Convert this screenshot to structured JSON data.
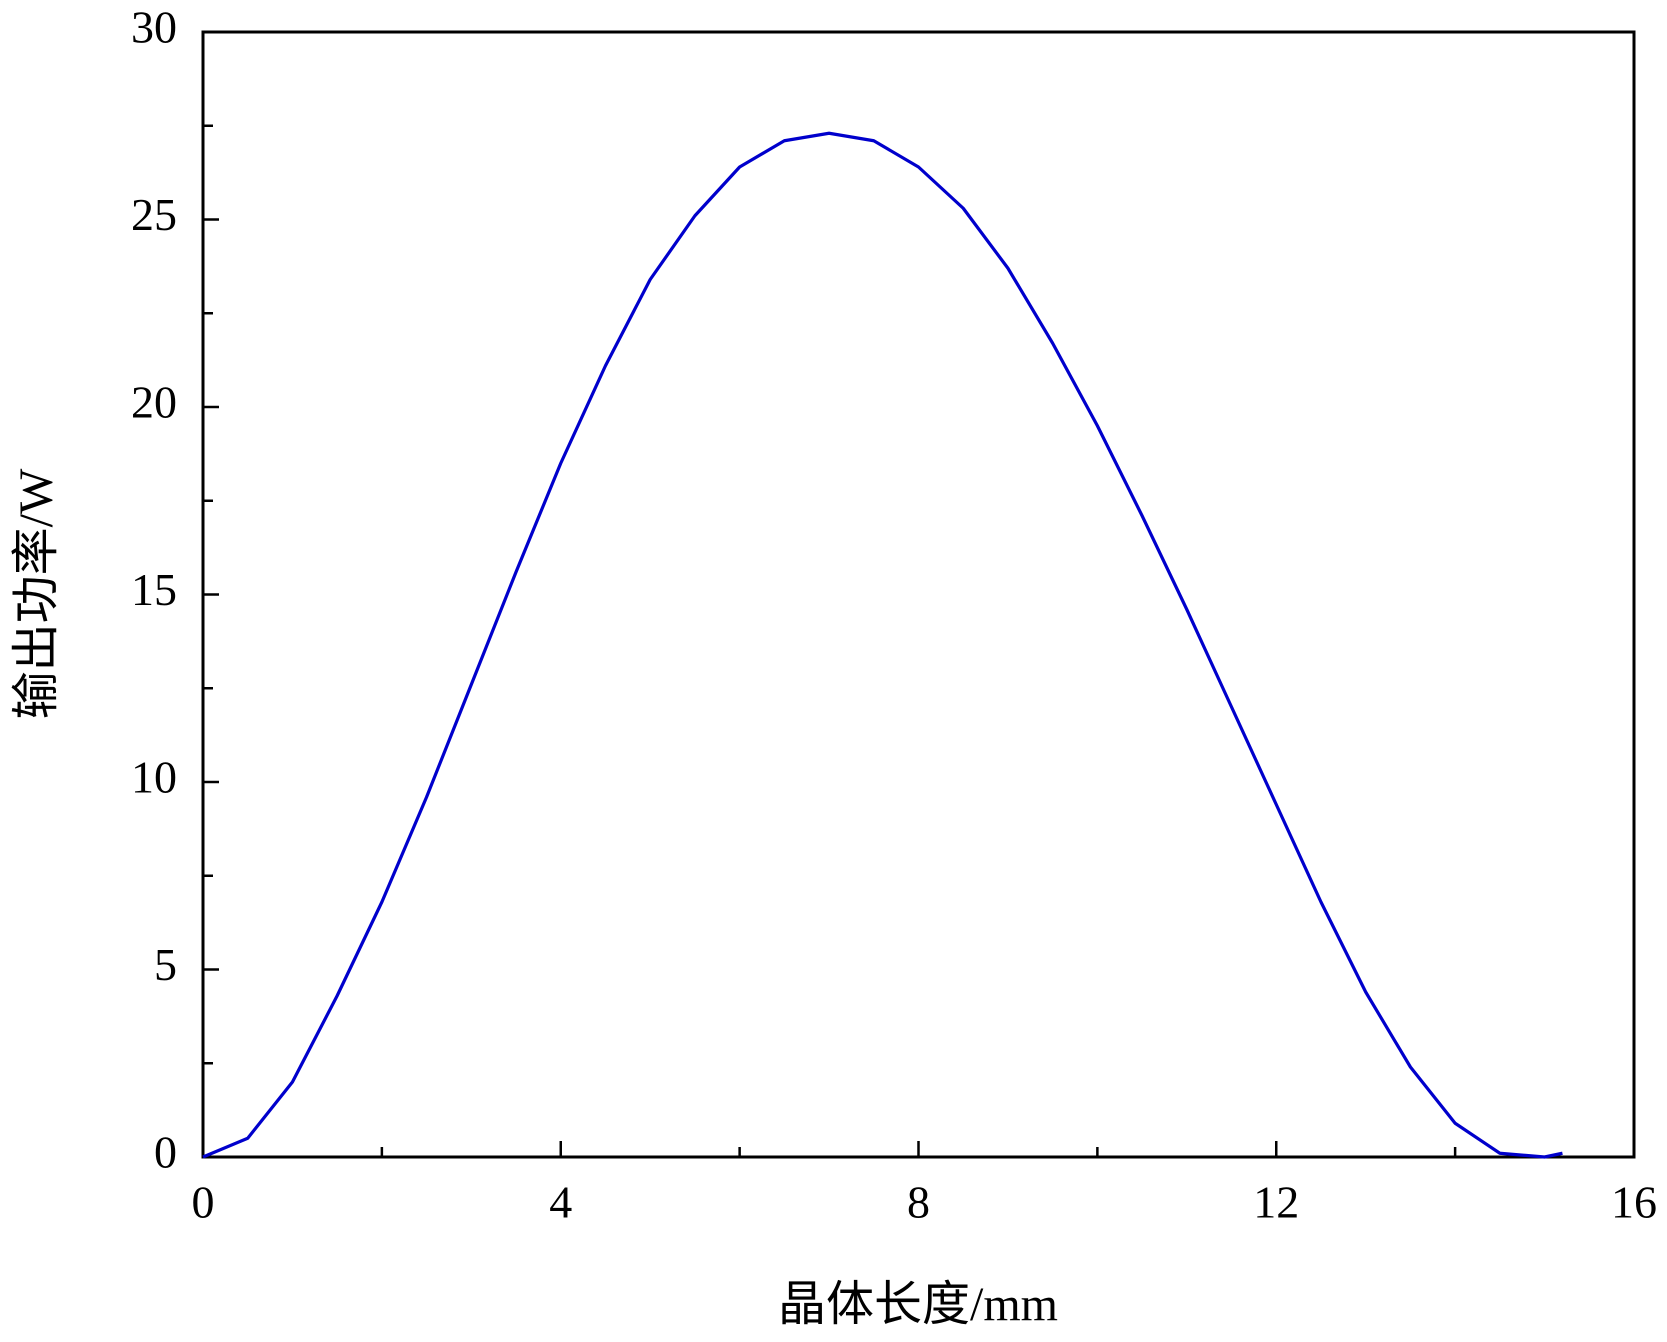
{
  "chart_data": {
    "type": "line",
    "x_label": "晶体长度/mm",
    "y_label": "输出功率/W",
    "x": [
      0,
      0.5,
      1,
      1.5,
      2,
      2.5,
      3,
      3.5,
      4,
      4.5,
      5,
      5.5,
      6,
      6.5,
      7,
      7.5,
      8,
      8.5,
      9,
      9.5,
      10,
      10.5,
      11,
      11.5,
      12,
      12.5,
      13,
      13.5,
      14,
      14.5,
      15,
      15.2
    ],
    "series": [
      {
        "color": "#0000cc",
        "values": [
          0,
          0.5,
          2.0,
          4.3,
          6.8,
          9.6,
          12.6,
          15.6,
          18.5,
          21.1,
          23.4,
          25.1,
          26.4,
          27.1,
          27.3,
          27.1,
          26.4,
          25.3,
          23.7,
          21.7,
          19.5,
          17.1,
          14.6,
          12.0,
          9.4,
          6.8,
          4.4,
          2.4,
          0.9,
          0.1,
          0,
          0.1
        ]
      }
    ],
    "xlim": [
      0,
      16
    ],
    "ylim": [
      0,
      30
    ],
    "xticks": [
      0,
      4,
      8,
      12,
      16
    ],
    "yticks": [
      0,
      5,
      10,
      15,
      20,
      25,
      30
    ],
    "xminor_ticks": [
      2,
      6,
      10,
      14
    ],
    "yminor_ticks": [
      2.5,
      7.5,
      12.5,
      17.5,
      22.5,
      27.5
    ]
  }
}
